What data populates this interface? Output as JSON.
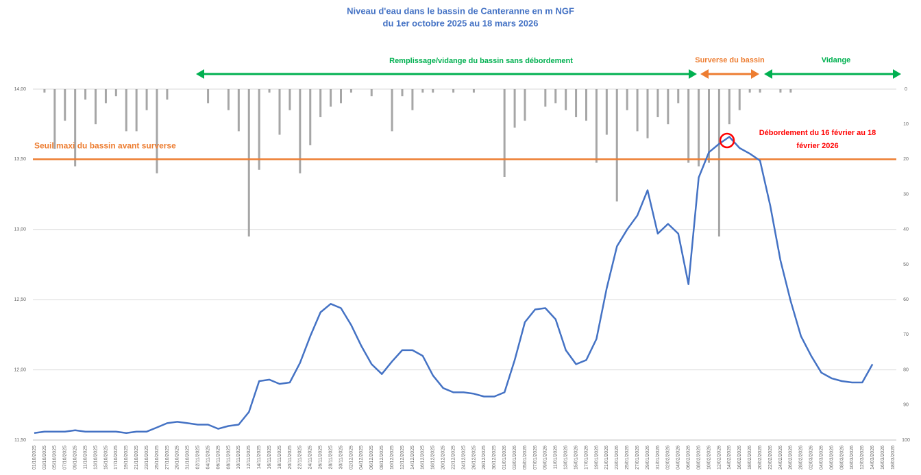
{
  "chart_data": {
    "type": "line",
    "title": "Niveau d'eau dans le bassin de Canteranne en m NGF",
    "subtitle": "du 1er octobre 2025 au 18 mars 2026",
    "categories": [
      "01/10/2025",
      "03/10/2025",
      "05/10/2025",
      "07/10/2025",
      "09/10/2025",
      "11/10/2025",
      "13/10/2025",
      "15/10/2025",
      "17/10/2025",
      "19/10/2025",
      "21/10/2025",
      "23/10/2025",
      "25/10/2025",
      "27/10/2025",
      "29/10/2025",
      "31/10/2025",
      "02/11/2025",
      "04/11/2025",
      "06/11/2025",
      "08/11/2025",
      "10/11/2025",
      "12/11/2025",
      "14/11/2025",
      "16/11/2025",
      "18/11/2025",
      "20/11/2025",
      "22/11/2025",
      "24/11/2025",
      "26/11/2025",
      "28/11/2025",
      "30/11/2025",
      "02/12/2025",
      "04/12/2025",
      "06/12/2025",
      "08/12/2025",
      "10/12/2025",
      "12/12/2025",
      "14/12/2025",
      "16/12/2025",
      "18/12/2025",
      "20/12/2025",
      "22/12/2025",
      "24/12/2025",
      "26/12/2025",
      "28/12/2025",
      "30/12/2025",
      "01/01/2026",
      "03/01/2026",
      "05/01/2026",
      "07/01/2026",
      "09/01/2026",
      "11/01/2026",
      "13/01/2026",
      "15/01/2026",
      "17/01/2026",
      "19/01/2026",
      "21/01/2026",
      "23/01/2026",
      "25/01/2026",
      "27/01/2026",
      "29/01/2026",
      "31/01/2026",
      "02/02/2026",
      "04/02/2026",
      "06/02/2026",
      "08/02/2026",
      "10/02/2026",
      "12/02/2026",
      "14/02/2026",
      "16/02/2026",
      "18/02/2026",
      "20/02/2026",
      "22/02/2026",
      "24/02/2026",
      "26/02/2026",
      "28/02/2026",
      "02/03/2026",
      "04/03/2026",
      "06/03/2026",
      "08/03/2026",
      "10/03/2026",
      "12/03/2026",
      "14/03/2026",
      "16/03/2026",
      "18/03/2026"
    ],
    "series": [
      {
        "type": "line",
        "color": "#4472c4",
        "values": [
          11.55,
          11.56,
          11.56,
          11.56,
          11.57,
          11.56,
          11.56,
          11.56,
          11.56,
          11.55,
          11.56,
          11.56,
          11.59,
          11.62,
          11.63,
          11.62,
          11.61,
          11.61,
          11.58,
          11.6,
          11.61,
          11.7,
          11.92,
          11.93,
          11.9,
          11.91,
          12.05,
          12.24,
          12.41,
          12.47,
          12.44,
          12.32,
          12.17,
          12.04,
          11.97,
          12.06,
          12.14,
          12.14,
          12.1,
          11.96,
          11.87,
          11.84,
          11.84,
          11.83,
          11.81,
          11.81,
          11.84,
          12.07,
          12.34,
          12.43,
          12.44,
          12.36,
          12.14,
          12.04,
          12.07,
          12.22,
          12.58,
          12.88,
          13.0,
          13.1,
          13.28,
          12.97,
          13.04,
          12.97,
          12.61,
          13.37,
          13.55,
          13.61,
          13.66,
          13.58,
          13.54,
          13.49,
          13.17,
          12.78,
          12.49,
          12.24,
          12.1,
          11.98,
          11.94,
          11.92,
          11.91,
          11.91,
          12.04,
          null,
          null
        ]
      },
      {
        "type": "bar",
        "axis": "y2",
        "color": "#a6a6a6",
        "values": [
          0,
          1,
          17,
          9,
          22,
          3,
          10,
          4,
          2,
          12,
          12,
          6,
          24,
          3,
          0,
          0,
          0,
          4,
          0,
          6,
          12,
          42,
          23,
          1,
          13,
          6,
          24,
          16,
          8,
          5,
          4,
          1,
          0,
          2,
          0,
          12,
          2,
          6,
          1,
          1,
          0,
          1,
          0,
          1,
          0,
          0,
          25,
          11,
          9,
          0,
          5,
          4,
          6,
          8,
          9,
          21,
          13,
          32,
          6,
          12,
          14,
          8,
          10,
          4,
          21,
          22,
          21,
          42,
          10,
          6,
          1,
          1,
          0,
          1,
          1,
          0,
          0,
          0,
          0,
          0,
          0,
          0,
          0,
          0,
          0
        ]
      }
    ],
    "ylim": [
      11.5,
      14.0
    ],
    "yticks": [
      {
        "value": 11.5,
        "label": "11,50"
      },
      {
        "value": 12.0,
        "label": "12,00"
      },
      {
        "value": 12.5,
        "label": "12,50"
      },
      {
        "value": 13.0,
        "label": "13,00"
      },
      {
        "value": 13.5,
        "label": "13,50"
      },
      {
        "value": 14.0,
        "label": "14,00"
      }
    ],
    "y2lim": [
      0,
      100
    ],
    "y2_inverted": true,
    "y2ticks": [
      0,
      10,
      20,
      30,
      40,
      50,
      60,
      70,
      80,
      90,
      100
    ],
    "grid": true,
    "threshold": {
      "value": 13.5,
      "label": "Seuil maxi du bassin avant surverse",
      "color": "#ed7d31"
    },
    "annotations": {
      "filling": "Remplissage/vidange du bassin sans débordement",
      "overflow": "Surverse du bassin",
      "draining": "Vidange",
      "overflow_note": [
        "Débordement du 16 février au 18",
        "février 2026"
      ]
    }
  }
}
